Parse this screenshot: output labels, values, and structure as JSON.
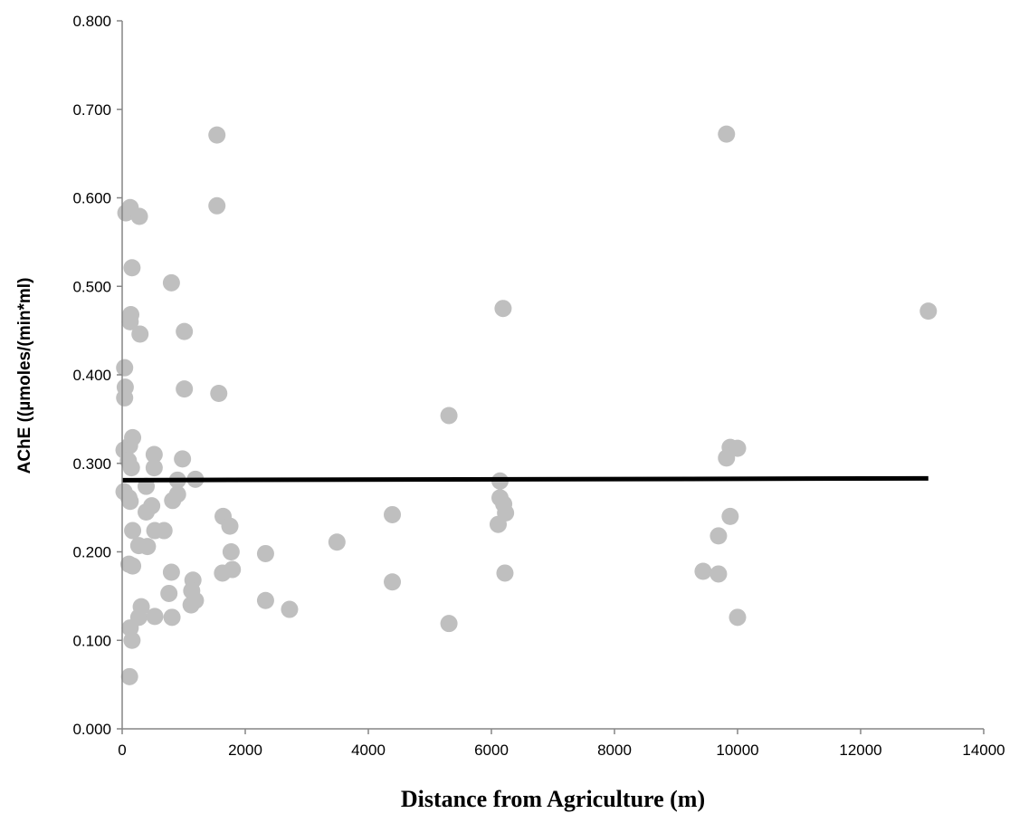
{
  "chart_data": {
    "type": "scatter",
    "title": "",
    "xlabel": "Distance from Agriculture (m)",
    "ylabel": "AChE ((µmoles/(min*ml)",
    "xlim": [
      0,
      14000
    ],
    "ylim": [
      0,
      0.8
    ],
    "x_ticks": [
      "0",
      "2000",
      "4000",
      "6000",
      "8000",
      "10000",
      "12000",
      "14000"
    ],
    "y_ticks": [
      "0.000",
      "0.100",
      "0.200",
      "0.300",
      "0.400",
      "0.500",
      "0.600",
      "0.700",
      "0.800"
    ],
    "grid": false,
    "legend": "none",
    "point_color": "#bfbfbf",
    "trendline_color": "#000000",
    "trendline": {
      "x": [
        0,
        13100
      ],
      "y": [
        0.281,
        0.283
      ]
    },
    "points": [
      {
        "x": 60,
        "y": 0.583
      },
      {
        "x": 130,
        "y": 0.589
      },
      {
        "x": 280,
        "y": 0.579
      },
      {
        "x": 160,
        "y": 0.521
      },
      {
        "x": 140,
        "y": 0.468
      },
      {
        "x": 130,
        "y": 0.46
      },
      {
        "x": 290,
        "y": 0.446
      },
      {
        "x": 40,
        "y": 0.408
      },
      {
        "x": 50,
        "y": 0.386
      },
      {
        "x": 40,
        "y": 0.374
      },
      {
        "x": 170,
        "y": 0.329
      },
      {
        "x": 120,
        "y": 0.32
      },
      {
        "x": 30,
        "y": 0.315
      },
      {
        "x": 100,
        "y": 0.303
      },
      {
        "x": 150,
        "y": 0.295
      },
      {
        "x": 30,
        "y": 0.268
      },
      {
        "x": 110,
        "y": 0.261
      },
      {
        "x": 130,
        "y": 0.257
      },
      {
        "x": 170,
        "y": 0.224
      },
      {
        "x": 270,
        "y": 0.207
      },
      {
        "x": 410,
        "y": 0.206
      },
      {
        "x": 110,
        "y": 0.186
      },
      {
        "x": 170,
        "y": 0.184
      },
      {
        "x": 310,
        "y": 0.138
      },
      {
        "x": 270,
        "y": 0.126
      },
      {
        "x": 130,
        "y": 0.114
      },
      {
        "x": 160,
        "y": 0.1
      },
      {
        "x": 120,
        "y": 0.059
      },
      {
        "x": 390,
        "y": 0.274
      },
      {
        "x": 390,
        "y": 0.245
      },
      {
        "x": 480,
        "y": 0.252
      },
      {
        "x": 520,
        "y": 0.31
      },
      {
        "x": 520,
        "y": 0.295
      },
      {
        "x": 530,
        "y": 0.224
      },
      {
        "x": 680,
        "y": 0.224
      },
      {
        "x": 530,
        "y": 0.127
      },
      {
        "x": 800,
        "y": 0.504
      },
      {
        "x": 1010,
        "y": 0.449
      },
      {
        "x": 1010,
        "y": 0.384
      },
      {
        "x": 980,
        "y": 0.305
      },
      {
        "x": 900,
        "y": 0.281
      },
      {
        "x": 900,
        "y": 0.265
      },
      {
        "x": 820,
        "y": 0.258
      },
      {
        "x": 1190,
        "y": 0.282
      },
      {
        "x": 800,
        "y": 0.177
      },
      {
        "x": 760,
        "y": 0.153
      },
      {
        "x": 810,
        "y": 0.126
      },
      {
        "x": 1150,
        "y": 0.168
      },
      {
        "x": 1130,
        "y": 0.156
      },
      {
        "x": 1190,
        "y": 0.145
      },
      {
        "x": 1120,
        "y": 0.14
      },
      {
        "x": 1540,
        "y": 0.671
      },
      {
        "x": 1540,
        "y": 0.591
      },
      {
        "x": 1570,
        "y": 0.379
      },
      {
        "x": 1640,
        "y": 0.24
      },
      {
        "x": 1750,
        "y": 0.229
      },
      {
        "x": 1770,
        "y": 0.2
      },
      {
        "x": 1630,
        "y": 0.176
      },
      {
        "x": 1790,
        "y": 0.18
      },
      {
        "x": 2330,
        "y": 0.198
      },
      {
        "x": 2330,
        "y": 0.145
      },
      {
        "x": 2720,
        "y": 0.135
      },
      {
        "x": 3490,
        "y": 0.211
      },
      {
        "x": 4390,
        "y": 0.242
      },
      {
        "x": 4390,
        "y": 0.166
      },
      {
        "x": 5310,
        "y": 0.354
      },
      {
        "x": 5310,
        "y": 0.119
      },
      {
        "x": 6190,
        "y": 0.475
      },
      {
        "x": 6140,
        "y": 0.28
      },
      {
        "x": 6140,
        "y": 0.261
      },
      {
        "x": 6200,
        "y": 0.254
      },
      {
        "x": 6230,
        "y": 0.244
      },
      {
        "x": 6110,
        "y": 0.231
      },
      {
        "x": 6220,
        "y": 0.176
      },
      {
        "x": 9820,
        "y": 0.672
      },
      {
        "x": 9880,
        "y": 0.318
      },
      {
        "x": 10000,
        "y": 0.317
      },
      {
        "x": 9820,
        "y": 0.306
      },
      {
        "x": 9880,
        "y": 0.24
      },
      {
        "x": 9690,
        "y": 0.218
      },
      {
        "x": 9440,
        "y": 0.178
      },
      {
        "x": 9690,
        "y": 0.175
      },
      {
        "x": 10000,
        "y": 0.126
      },
      {
        "x": 13100,
        "y": 0.472
      }
    ]
  }
}
